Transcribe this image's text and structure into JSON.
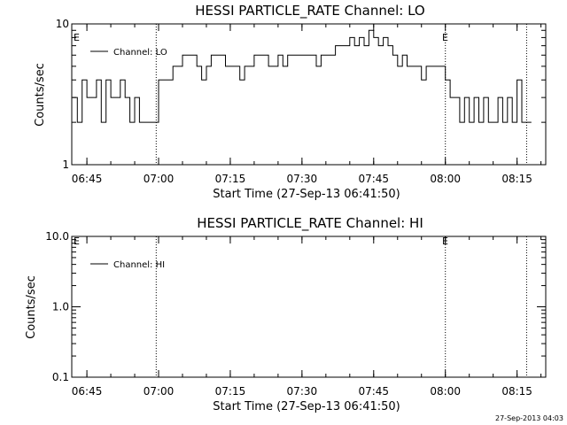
{
  "chart_data": [
    {
      "type": "line",
      "title": "HESSI PARTICLE_RATE Channel: LO",
      "xlabel": "Start Time (27-Sep-13 06:41:50)",
      "ylabel": "Counts/sec",
      "yscale": "log",
      "ylim": [
        1,
        10
      ],
      "y_tick_labels": [
        "1",
        "10"
      ],
      "xlim": [
        "06:41:50",
        "08:21:00"
      ],
      "x_tick_labels": [
        "06:45",
        "07:00",
        "07:15",
        "07:30",
        "07:45",
        "08:00",
        "08:15"
      ],
      "legend": {
        "placement": "top-left",
        "entries": [
          "Channel: LO"
        ]
      },
      "event_markers": [
        {
          "time": "06:41:50",
          "label": "E"
        },
        {
          "time": "06:59:30",
          "label": ""
        },
        {
          "time": "08:00:00",
          "label": "E"
        },
        {
          "time": "08:17:00",
          "label": ""
        }
      ],
      "series": [
        {
          "name": "Channel: LO",
          "x": [
            "06:42",
            "06:43",
            "06:44",
            "06:45",
            "06:46",
            "06:47",
            "06:48",
            "06:49",
            "06:50",
            "06:51",
            "06:52",
            "06:53",
            "06:54",
            "06:55",
            "06:56",
            "06:57",
            "06:58",
            "06:59",
            "07:00",
            "07:01",
            "07:02",
            "07:03",
            "07:04",
            "07:05",
            "07:06",
            "07:07",
            "07:08",
            "07:09",
            "07:10",
            "07:11",
            "07:12",
            "07:13",
            "07:14",
            "07:15",
            "07:16",
            "07:17",
            "07:18",
            "07:19",
            "07:20",
            "07:21",
            "07:22",
            "07:23",
            "07:24",
            "07:25",
            "07:26",
            "07:27",
            "07:28",
            "07:29",
            "07:30",
            "07:31",
            "07:32",
            "07:33",
            "07:34",
            "07:35",
            "07:36",
            "07:37",
            "07:38",
            "07:39",
            "07:40",
            "07:41",
            "07:42",
            "07:43",
            "07:44",
            "07:45",
            "07:46",
            "07:47",
            "07:48",
            "07:49",
            "07:50",
            "07:51",
            "07:52",
            "07:53",
            "07:54",
            "07:55",
            "07:56",
            "07:57",
            "07:58",
            "07:59",
            "08:00",
            "08:01",
            "08:02",
            "08:03",
            "08:04",
            "08:05",
            "08:06",
            "08:07",
            "08:08",
            "08:09",
            "08:10",
            "08:11",
            "08:12",
            "08:13",
            "08:14",
            "08:15",
            "08:16",
            "08:17"
          ],
          "values": [
            3,
            2,
            4,
            3,
            3,
            4,
            2,
            4,
            3,
            3,
            4,
            3,
            2,
            3,
            2,
            2,
            2,
            2,
            4,
            4,
            4,
            5,
            5,
            6,
            6,
            6,
            5,
            4,
            5,
            6,
            6,
            6,
            5,
            5,
            5,
            4,
            5,
            5,
            6,
            6,
            6,
            5,
            5,
            6,
            5,
            6,
            6,
            6,
            6,
            6,
            6,
            5,
            6,
            6,
            6,
            7,
            7,
            7,
            8,
            7,
            8,
            7,
            9,
            8,
            7,
            8,
            7,
            6,
            5,
            6,
            5,
            5,
            5,
            4,
            5,
            5,
            5,
            5,
            4,
            3,
            3,
            2,
            3,
            2,
            3,
            2,
            3,
            2,
            2,
            3,
            2,
            3,
            2,
            4,
            2,
            2
          ]
        }
      ]
    },
    {
      "type": "line",
      "title": "HESSI PARTICLE_RATE Channel: HI",
      "xlabel": "Start Time (27-Sep-13 06:41:50)",
      "ylabel": "Counts/sec",
      "yscale": "log",
      "ylim": [
        0.1,
        10
      ],
      "y_tick_labels": [
        "0.1",
        "1.0",
        "10.0"
      ],
      "xlim": [
        "06:41:50",
        "08:21:00"
      ],
      "x_tick_labels": [
        "06:45",
        "07:00",
        "07:15",
        "07:30",
        "07:45",
        "08:00",
        "08:15"
      ],
      "legend": {
        "placement": "top-left",
        "entries": [
          "Channel: HI"
        ]
      },
      "event_markers": [
        {
          "time": "06:41:50",
          "label": "E"
        },
        {
          "time": "06:59:30",
          "label": ""
        },
        {
          "time": "08:00:00",
          "label": "E"
        },
        {
          "time": "08:17:00",
          "label": ""
        }
      ],
      "series": [
        {
          "name": "Channel: HI",
          "x": [],
          "values": []
        }
      ]
    }
  ],
  "footer_timestamp": "27-Sep-2013 04:03"
}
